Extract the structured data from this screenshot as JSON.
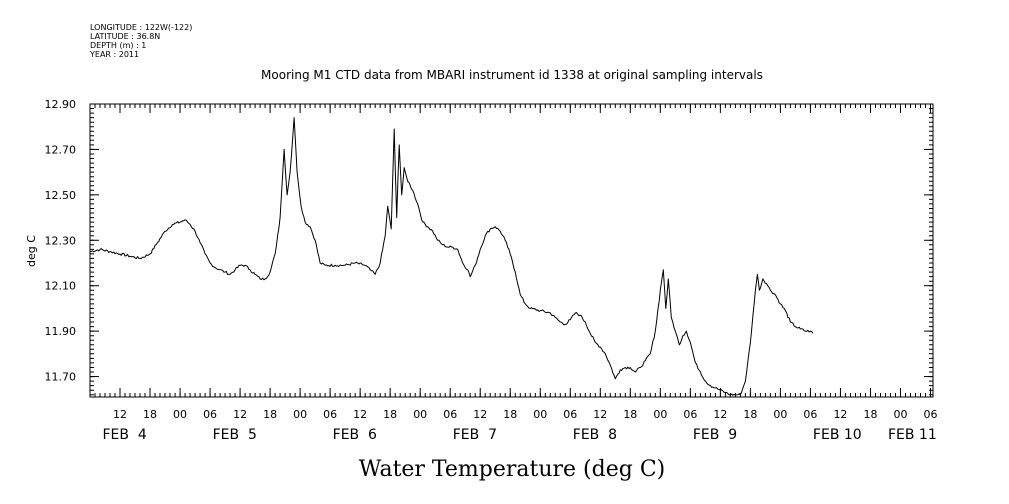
{
  "meta": {
    "longitude": "LONGITUDE : 122W(-122)",
    "latitude": "LATITUDE : 36.8N",
    "depth": "DEPTH (m) : 1",
    "year": "YEAR : 2011"
  },
  "chart_data": {
    "type": "line",
    "title": "Mooring M1 CTD data from MBARI instrument id 1338 at original sampling intervals",
    "xlabel": "Water Temperature (deg C)",
    "ylabel": "deg C",
    "x_unit": "hours since FEB 4 00:00, 2011",
    "xlim": [
      6,
      174.5
    ],
    "ylim": [
      11.61,
      12.9
    ],
    "yticks": [
      "12.90",
      "12.70",
      "12.50",
      "12.30",
      "12.10",
      "11.90",
      "11.70"
    ],
    "hour_ticks": [
      {
        "t": 12,
        "label": "12"
      },
      {
        "t": 18,
        "label": "18"
      },
      {
        "t": 24,
        "label": "00"
      },
      {
        "t": 30,
        "label": "06"
      },
      {
        "t": 36,
        "label": "12"
      },
      {
        "t": 42,
        "label": "18"
      },
      {
        "t": 48,
        "label": "00"
      },
      {
        "t": 54,
        "label": "06"
      },
      {
        "t": 60,
        "label": "12"
      },
      {
        "t": 66,
        "label": "18"
      },
      {
        "t": 72,
        "label": "00"
      },
      {
        "t": 78,
        "label": "06"
      },
      {
        "t": 84,
        "label": "12"
      },
      {
        "t": 90,
        "label": "18"
      },
      {
        "t": 96,
        "label": "00"
      },
      {
        "t": 102,
        "label": "06"
      },
      {
        "t": 108,
        "label": "12"
      },
      {
        "t": 114,
        "label": "18"
      },
      {
        "t": 120,
        "label": "00"
      },
      {
        "t": 126,
        "label": "06"
      },
      {
        "t": 132,
        "label": "12"
      },
      {
        "t": 138,
        "label": "18"
      },
      {
        "t": 144,
        "label": "00"
      },
      {
        "t": 150,
        "label": "06"
      },
      {
        "t": 156,
        "label": "12"
      },
      {
        "t": 162,
        "label": "18"
      },
      {
        "t": 168,
        "label": "00"
      },
      {
        "t": 174,
        "label": "06"
      }
    ],
    "day_labels": [
      {
        "t": 8.5,
        "label": "FEB  4"
      },
      {
        "t": 30.5,
        "label": "FEB  5"
      },
      {
        "t": 54.5,
        "label": "FEB  6"
      },
      {
        "t": 78.5,
        "label": "FEB  7"
      },
      {
        "t": 102.5,
        "label": "FEB  8"
      },
      {
        "t": 126.5,
        "label": "FEB  9"
      },
      {
        "t": 150.5,
        "label": "FEB 10"
      },
      {
        "t": 165.5,
        "label": "FEB 11"
      }
    ],
    "series": [
      {
        "points": [
          [
            6,
            12.25
          ],
          [
            8,
            12.26
          ],
          [
            10,
            12.25
          ],
          [
            12,
            12.24
          ],
          [
            14,
            12.23
          ],
          [
            16,
            12.22
          ],
          [
            18,
            12.24
          ],
          [
            19.5,
            12.29
          ],
          [
            21,
            12.34
          ],
          [
            22.5,
            12.37
          ],
          [
            24,
            12.38
          ],
          [
            25,
            12.39
          ],
          [
            26,
            12.37
          ],
          [
            27,
            12.34
          ],
          [
            28,
            12.29
          ],
          [
            29,
            12.24
          ],
          [
            30,
            12.2
          ],
          [
            31,
            12.18
          ],
          [
            32,
            12.17
          ],
          [
            33,
            12.16
          ],
          [
            34,
            12.15
          ],
          [
            35,
            12.17
          ],
          [
            36,
            12.19
          ],
          [
            37,
            12.19
          ],
          [
            38,
            12.17
          ],
          [
            39,
            12.15
          ],
          [
            40,
            12.13
          ],
          [
            41,
            12.13
          ],
          [
            42,
            12.16
          ],
          [
            43,
            12.24
          ],
          [
            44,
            12.4
          ],
          [
            44.8,
            12.7
          ],
          [
            45.4,
            12.5
          ],
          [
            46,
            12.6
          ],
          [
            46.8,
            12.84
          ],
          [
            47.4,
            12.6
          ],
          [
            48.2,
            12.45
          ],
          [
            49,
            12.38
          ],
          [
            50,
            12.36
          ],
          [
            51,
            12.3
          ],
          [
            52,
            12.2
          ],
          [
            53,
            12.19
          ],
          [
            55,
            12.19
          ],
          [
            57,
            12.19
          ],
          [
            59,
            12.2
          ],
          [
            61,
            12.19
          ],
          [
            62,
            12.17
          ],
          [
            63,
            12.15
          ],
          [
            64,
            12.2
          ],
          [
            65,
            12.32
          ],
          [
            65.5,
            12.45
          ],
          [
            66.2,
            12.35
          ],
          [
            66.8,
            12.79
          ],
          [
            67.3,
            12.4
          ],
          [
            67.8,
            12.72
          ],
          [
            68.3,
            12.5
          ],
          [
            68.8,
            12.62
          ],
          [
            69.5,
            12.56
          ],
          [
            70.5,
            12.52
          ],
          [
            71.5,
            12.46
          ],
          [
            72.5,
            12.38
          ],
          [
            73.5,
            12.36
          ],
          [
            74.5,
            12.34
          ],
          [
            75.5,
            12.3
          ],
          [
            76.5,
            12.28
          ],
          [
            77.5,
            12.27
          ],
          [
            78.5,
            12.27
          ],
          [
            79.5,
            12.26
          ],
          [
            80.5,
            12.2
          ],
          [
            81.5,
            12.17
          ],
          [
            82,
            12.14
          ],
          [
            83,
            12.19
          ],
          [
            84,
            12.26
          ],
          [
            85,
            12.32
          ],
          [
            86,
            12.35
          ],
          [
            87,
            12.36
          ],
          [
            88,
            12.34
          ],
          [
            89,
            12.3
          ],
          [
            90,
            12.24
          ],
          [
            91,
            12.16
          ],
          [
            92,
            12.06
          ],
          [
            93,
            12.02
          ],
          [
            94,
            12.0
          ],
          [
            96,
            11.99
          ],
          [
            98,
            11.98
          ],
          [
            99,
            11.96
          ],
          [
            100,
            11.94
          ],
          [
            101,
            11.93
          ],
          [
            102,
            11.95
          ],
          [
            103,
            11.98
          ],
          [
            104,
            11.97
          ],
          [
            105,
            11.94
          ],
          [
            106,
            11.89
          ],
          [
            107,
            11.85
          ],
          [
            108,
            11.83
          ],
          [
            109,
            11.8
          ],
          [
            110,
            11.75
          ],
          [
            111,
            11.69
          ],
          [
            112,
            11.73
          ],
          [
            113,
            11.74
          ],
          [
            114,
            11.74
          ],
          [
            115,
            11.72
          ],
          [
            116,
            11.74
          ],
          [
            117,
            11.77
          ],
          [
            118,
            11.8
          ],
          [
            119,
            11.9
          ],
          [
            120,
            12.08
          ],
          [
            120.6,
            12.17
          ],
          [
            121.1,
            12.0
          ],
          [
            121.6,
            12.13
          ],
          [
            122.2,
            11.96
          ],
          [
            123,
            11.9
          ],
          [
            123.8,
            11.84
          ],
          [
            124.5,
            11.88
          ],
          [
            125.2,
            11.9
          ],
          [
            126,
            11.85
          ],
          [
            127,
            11.76
          ],
          [
            128,
            11.72
          ],
          [
            129,
            11.68
          ],
          [
            130,
            11.66
          ],
          [
            131,
            11.65
          ],
          [
            132,
            11.64
          ],
          [
            133,
            11.63
          ],
          [
            134,
            11.62
          ],
          [
            135,
            11.62
          ],
          [
            136,
            11.62
          ],
          [
            137,
            11.68
          ],
          [
            138,
            11.85
          ],
          [
            139,
            12.08
          ],
          [
            139.4,
            12.15
          ],
          [
            139.8,
            12.08
          ],
          [
            140.5,
            12.13
          ],
          [
            141.2,
            12.11
          ],
          [
            142,
            12.08
          ],
          [
            143,
            12.06
          ],
          [
            144,
            12.02
          ],
          [
            145,
            11.99
          ],
          [
            146,
            11.94
          ],
          [
            147,
            11.92
          ],
          [
            148,
            11.91
          ],
          [
            149,
            11.9
          ],
          [
            150,
            11.9
          ],
          [
            150.5,
            11.89
          ]
        ]
      }
    ]
  }
}
